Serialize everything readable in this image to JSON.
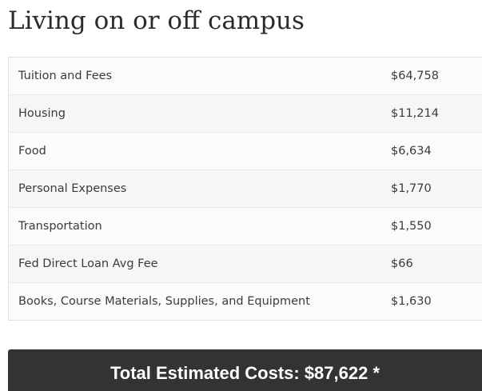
{
  "section": {
    "title": "Living on or off campus"
  },
  "costs": [
    {
      "label": "Tuition and Fees",
      "value": "$64,758"
    },
    {
      "label": "Housing",
      "value": "$11,214"
    },
    {
      "label": "Food",
      "value": "$6,634"
    },
    {
      "label": "Personal Expenses",
      "value": "$1,770"
    },
    {
      "label": "Transportation",
      "value": "$1,550"
    },
    {
      "label": "Fed Direct Loan Avg Fee",
      "value": "$66"
    },
    {
      "label": "Books, Course Materials, Supplies, and Equipment",
      "value": "$1,630"
    }
  ],
  "total": {
    "text": "Total Estimated Costs: $87,622 *"
  },
  "colors": {
    "banner_background": "#333333",
    "banner_text": "#ffffff",
    "row_odd": "#fbfbfb",
    "row_even": "#f6f6f6"
  }
}
